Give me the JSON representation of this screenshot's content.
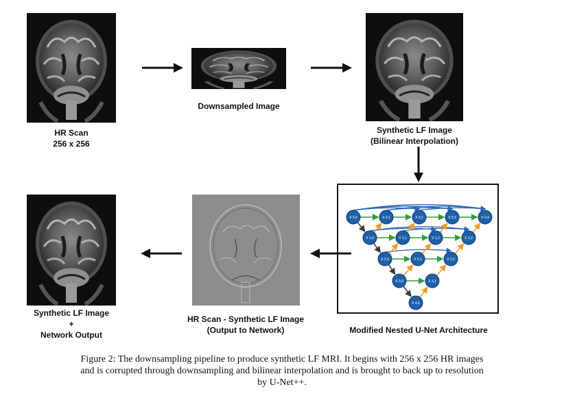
{
  "labels": {
    "hr_scan_line1": "HR Scan",
    "hr_scan_line2": "256 x 256",
    "downsampled": "Downsampled Image",
    "synthetic_lf_line1": "Synthetic LF Image",
    "synthetic_lf_line2": "(Bilinear Interpolation)",
    "output_line1": "Synthetic LF Image",
    "output_line2": "+",
    "output_line3": "Network Output",
    "residual_line1": "HR Scan - Synthetic LF Image",
    "residual_line2": "(Output to Network)",
    "architecture": "Modified Nested U-Net Architecture"
  },
  "nodes": {
    "x00": "X 0,0",
    "x01": "X 0,1",
    "x02": "X 0,2",
    "x03": "X 0,3",
    "x04": "X 0,4",
    "x10": "X 1,0",
    "x11": "X 1,1",
    "x12": "X 1,2",
    "x13": "X 1,3",
    "x20": "X 2,0",
    "x21": "X 2,1",
    "x22": "X 2,2",
    "x30": "X 3,0",
    "x31": "X 3,1",
    "x40": "X 4,0"
  },
  "colors": {
    "node": "#1f5fa8",
    "down_arrow": "#3a3a3a",
    "skip_arrow": "#2e9e3e",
    "up_arrow": "#f29b2c",
    "dense_arrow": "#2b66b8"
  },
  "caption": {
    "line1": "Figure 2: The downsampling pipeline to produce synthetic LF MRI. It begins with 256 x 256 HR images",
    "line2": "and is corrupted through downsampling and bilinear interpolation and is brought to back up to resolution",
    "line3": "by U-Net++."
  }
}
